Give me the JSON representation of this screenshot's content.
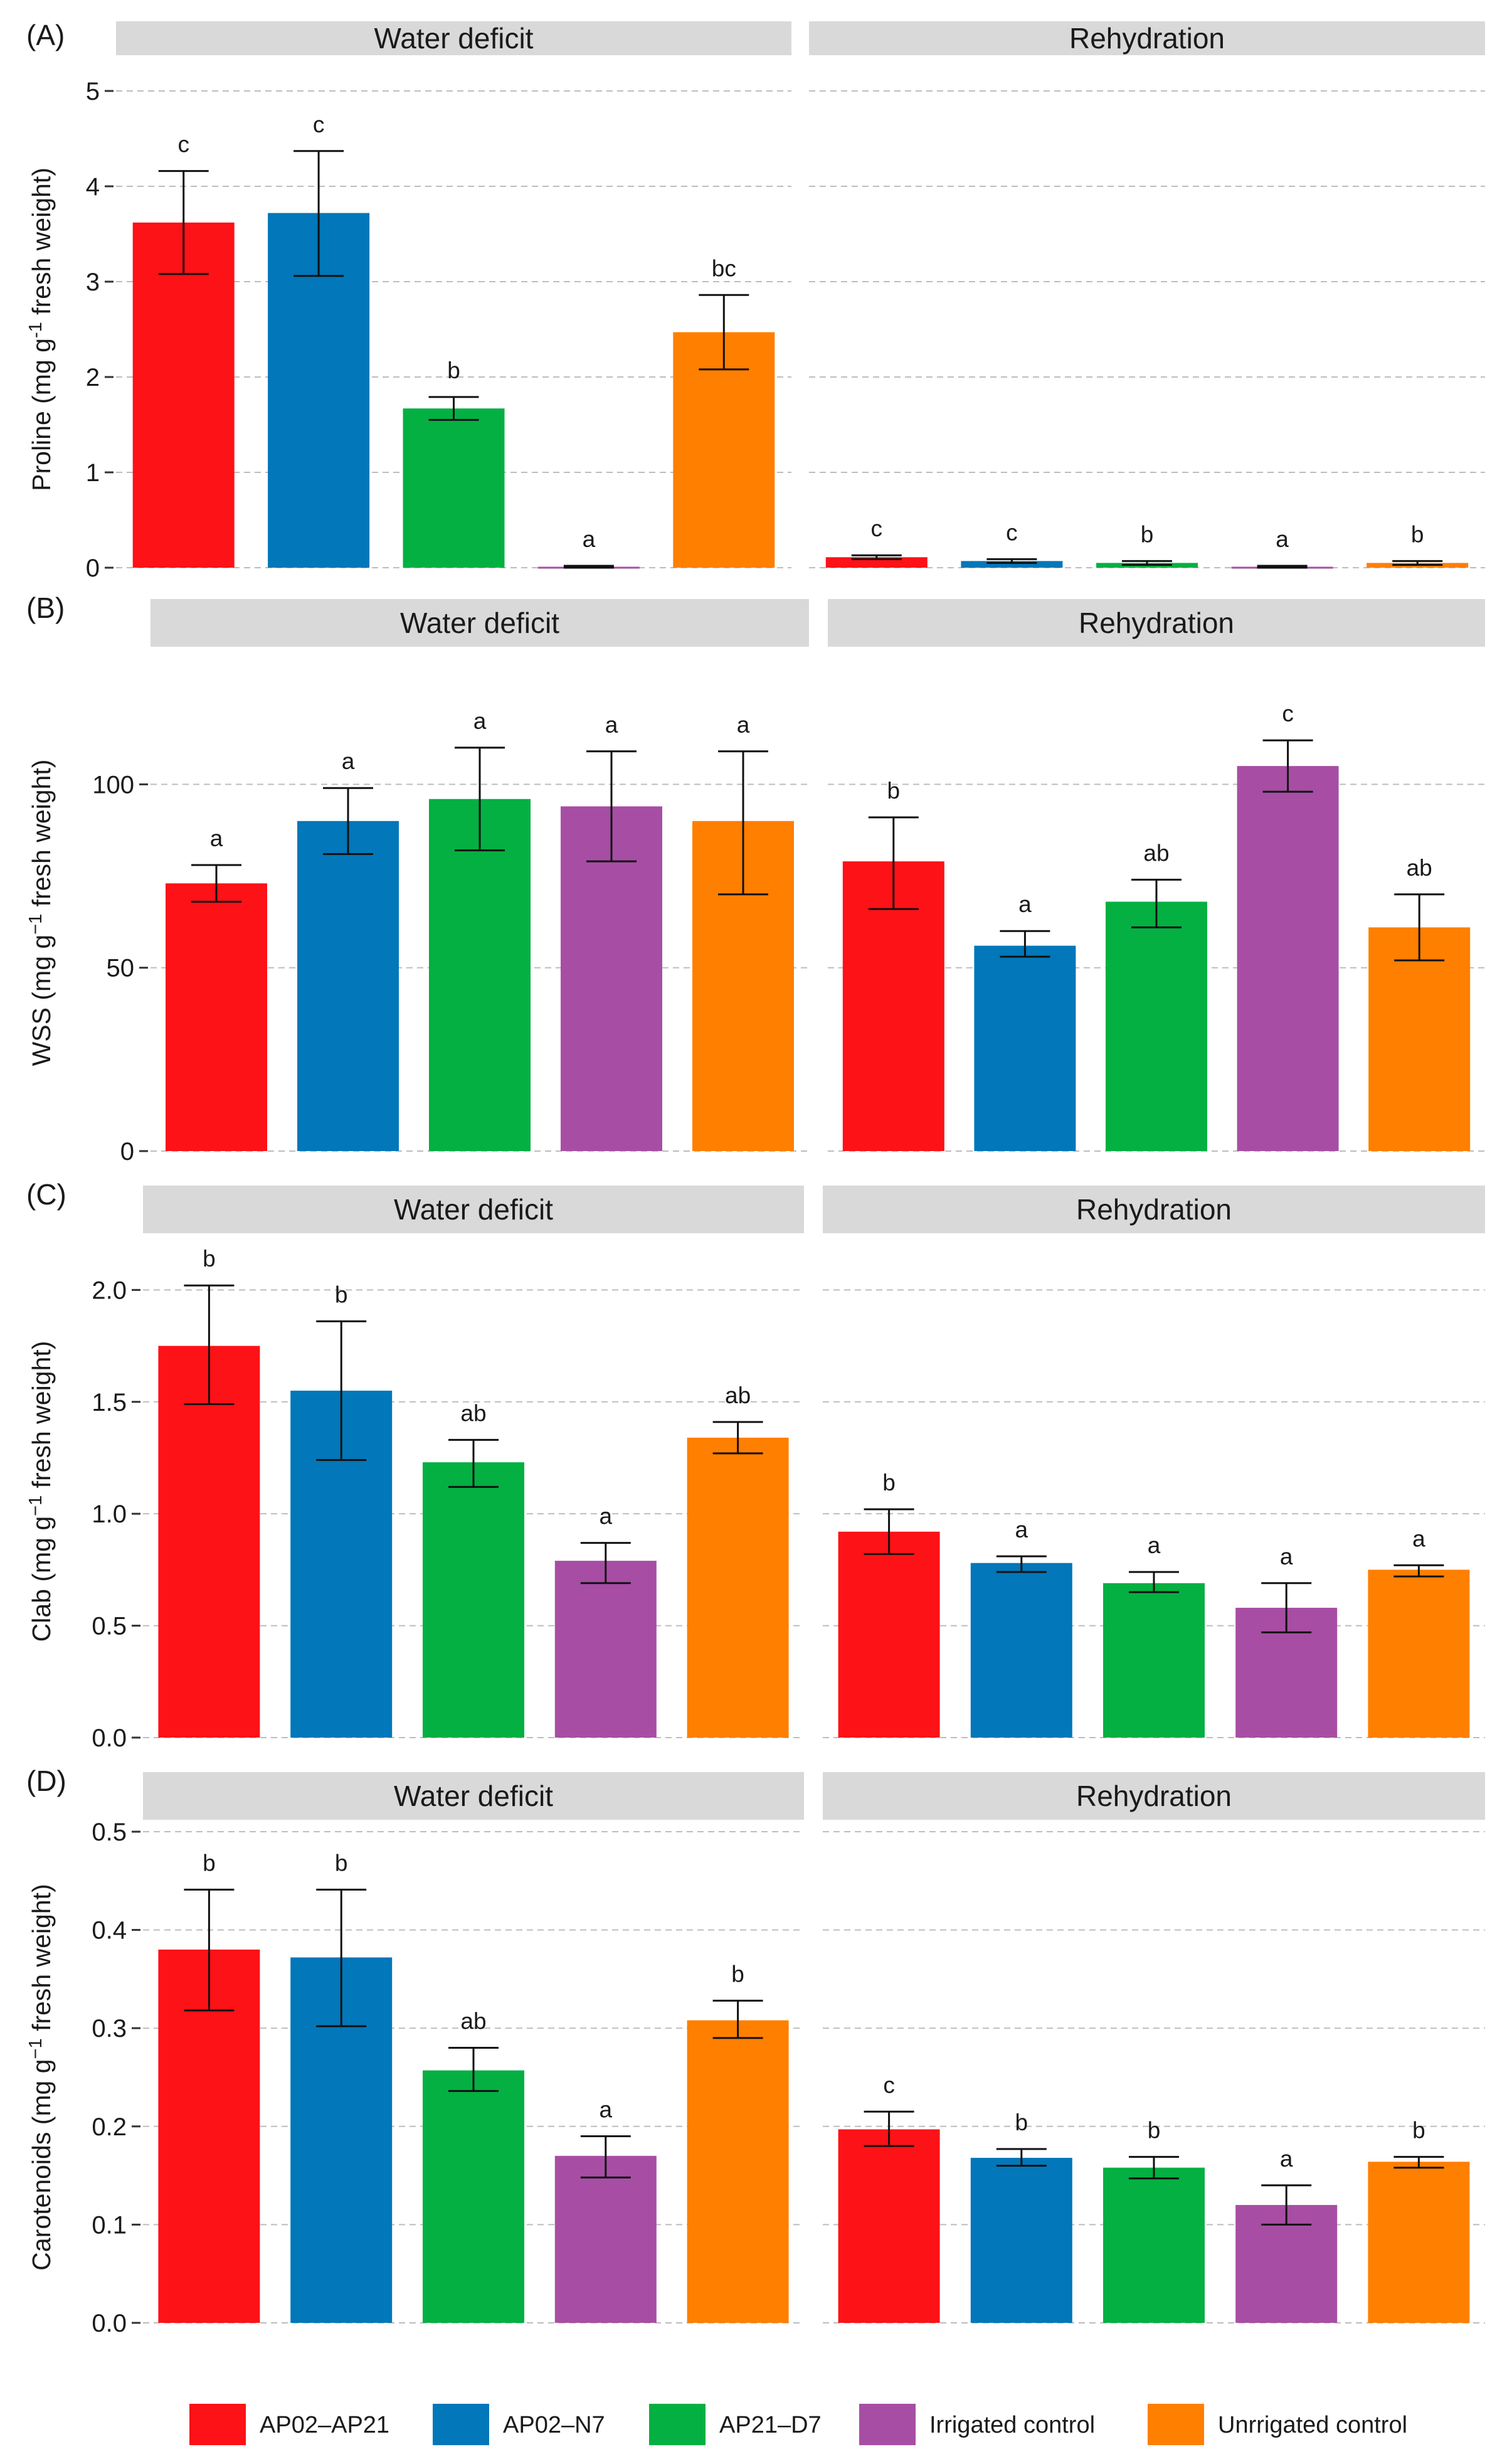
{
  "figure": {
    "legend": [
      {
        "label": "AP02–AP21",
        "color": "#fc1217"
      },
      {
        "label": "AP02–N7",
        "color": "#0277b9"
      },
      {
        "label": "AP21–D7",
        "color": "#04b042"
      },
      {
        "label": "Irrigated control",
        "color": "#a74ea4"
      },
      {
        "label": "Unrrigated control",
        "color": "#ff7f00"
      }
    ]
  },
  "chart_data": [
    {
      "type": "bar",
      "panel": "(A)",
      "ylabel": "Proline (mg g",
      "ylabel_sup": "-1",
      "ylabel_tail": " fresh weight)",
      "ylim": [
        0,
        5
      ],
      "yticks": [
        0,
        1,
        2,
        3,
        4,
        5
      ],
      "tick_labels": [
        "0",
        "1",
        "2",
        "3",
        "4",
        "5"
      ],
      "facets": [
        "Water deficit",
        "Rehydration"
      ],
      "categories": [
        "AP02–AP21",
        "AP02–N7",
        "AP21–D7",
        "Irrigated control",
        "Unrrigated control"
      ],
      "series": [
        {
          "name": "Water deficit",
          "values": [
            3.62,
            3.72,
            1.67,
            0.01,
            2.47
          ],
          "err_low": [
            3.08,
            3.06,
            1.55,
            0.0,
            2.08
          ],
          "err_high": [
            4.16,
            4.37,
            1.79,
            0.02,
            2.86
          ],
          "letters": [
            "c",
            "c",
            "b",
            "a",
            "bc"
          ]
        },
        {
          "name": "Rehydration",
          "values": [
            0.11,
            0.07,
            0.05,
            0.01,
            0.05
          ],
          "err_low": [
            0.09,
            0.05,
            0.03,
            0.0,
            0.03
          ],
          "err_high": [
            0.13,
            0.09,
            0.07,
            0.02,
            0.07
          ],
          "letters": [
            "c",
            "c",
            "b",
            "a",
            "b"
          ]
        }
      ]
    },
    {
      "type": "bar",
      "panel": "(B)",
      "ylabel": "WSS (mg g",
      "ylabel_sup": "−1",
      "ylabel_tail": " fresh weight)",
      "ylim": [
        0,
        130
      ],
      "yticks": [
        0,
        50,
        100
      ],
      "tick_labels": [
        "0",
        "50",
        "100"
      ],
      "facets": [
        "Water deficit",
        "Rehydration"
      ],
      "categories": [
        "AP02–AP21",
        "AP02–N7",
        "AP21–D7",
        "Irrigated control",
        "Unrrigated control"
      ],
      "series": [
        {
          "name": "Water deficit",
          "values": [
            73,
            90,
            96,
            94,
            90
          ],
          "err_low": [
            68,
            81,
            82,
            79,
            70
          ],
          "err_high": [
            78,
            99,
            110,
            109,
            109
          ],
          "letters": [
            "a",
            "a",
            "a",
            "a",
            "a"
          ]
        },
        {
          "name": "Rehydration",
          "values": [
            79,
            56,
            68,
            105,
            61
          ],
          "err_low": [
            66,
            53,
            61,
            98,
            52
          ],
          "err_high": [
            91,
            60,
            74,
            112,
            70
          ],
          "letters": [
            "b",
            "a",
            "ab",
            "c",
            "ab"
          ]
        }
      ]
    },
    {
      "type": "bar",
      "panel": "(C)",
      "ylabel": "Clab (mg g",
      "ylabel_sup": "−1",
      "ylabel_tail": " fresh weight)",
      "ylim": [
        0,
        2.2
      ],
      "yticks": [
        0,
        0.5,
        1.0,
        1.5,
        2.0
      ],
      "tick_labels": [
        "0.0",
        "0.5",
        "1.0",
        "1.5",
        "2.0"
      ],
      "facets": [
        "Water deficit",
        "Rehydration"
      ],
      "categories": [
        "AP02–AP21",
        "AP02–N7",
        "AP21–D7",
        "Irrigated control",
        "Unrrigated control"
      ],
      "series": [
        {
          "name": "Water deficit",
          "values": [
            1.75,
            1.55,
            1.23,
            0.79,
            1.34
          ],
          "err_low": [
            1.49,
            1.24,
            1.12,
            0.69,
            1.27
          ],
          "err_high": [
            2.02,
            1.86,
            1.33,
            0.87,
            1.41
          ],
          "letters": [
            "b",
            "b",
            "ab",
            "a",
            "ab"
          ]
        },
        {
          "name": "Rehydration",
          "values": [
            0.92,
            0.78,
            0.69,
            0.58,
            0.75
          ],
          "err_low": [
            0.82,
            0.74,
            0.65,
            0.47,
            0.72
          ],
          "err_high": [
            1.02,
            0.81,
            0.74,
            0.69,
            0.77
          ],
          "letters": [
            "b",
            "a",
            "a",
            "a",
            "a"
          ]
        }
      ]
    },
    {
      "type": "bar",
      "panel": "(D)",
      "ylabel": "Carotenoids (mg g",
      "ylabel_sup": "−1",
      "ylabel_tail": " fresh weight)",
      "ylim": [
        0,
        0.5
      ],
      "yticks": [
        0,
        0.1,
        0.2,
        0.3,
        0.4,
        0.5
      ],
      "tick_labels": [
        "0.0",
        "0.1",
        "0.2",
        "0.3",
        "0.4",
        "0.5"
      ],
      "facets": [
        "Water deficit",
        "Rehydration"
      ],
      "categories": [
        "AP02–AP21",
        "AP02–N7",
        "AP21–D7",
        "Irrigated control",
        "Unrrigated control"
      ],
      "series": [
        {
          "name": "Water deficit",
          "values": [
            0.38,
            0.372,
            0.257,
            0.17,
            0.308
          ],
          "err_low": [
            0.318,
            0.302,
            0.236,
            0.148,
            0.29
          ],
          "err_high": [
            0.441,
            0.441,
            0.28,
            0.19,
            0.328
          ],
          "letters": [
            "b",
            "b",
            "ab",
            "a",
            "b"
          ]
        },
        {
          "name": "Rehydration",
          "values": [
            0.197,
            0.168,
            0.158,
            0.12,
            0.164
          ],
          "err_low": [
            0.18,
            0.16,
            0.147,
            0.1,
            0.158
          ],
          "err_high": [
            0.215,
            0.177,
            0.169,
            0.14,
            0.169
          ],
          "letters": [
            "c",
            "b",
            "b",
            "a",
            "b"
          ]
        }
      ]
    }
  ]
}
